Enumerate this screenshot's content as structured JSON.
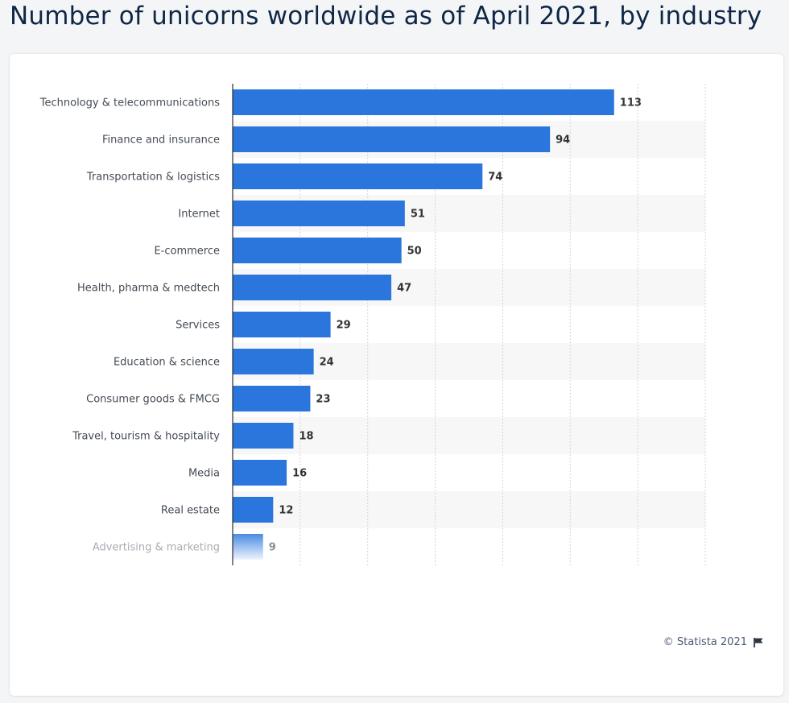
{
  "title": "Number of unicorns worldwide as of April 2021, by industry",
  "credit": "© Statista 2021",
  "icons": {
    "credit_flag": "flag-icon"
  },
  "colors": {
    "bar": "#2a76dd",
    "title": "#0f2747",
    "band": "#f7f7f7"
  },
  "chart_data": {
    "type": "bar",
    "orientation": "horizontal",
    "title": "Number of unicorns worldwide as of April 2021, by industry",
    "categories": [
      "Technology & telecommunications",
      "Finance and insurance",
      "Transportation & logistics",
      "Internet",
      "E-commerce",
      "Health, pharma & medtech",
      "Services",
      "Education & science",
      "Consumer goods & FMCG",
      "Travel, tourism & hospitality",
      "Media",
      "Real estate",
      "Advertising & marketing"
    ],
    "values": [
      113,
      94,
      74,
      51,
      50,
      47,
      29,
      24,
      23,
      18,
      16,
      12,
      9
    ],
    "value_labels": [
      "113",
      "94",
      "74",
      "51",
      "50",
      "47",
      "29",
      "24",
      "23",
      "18",
      "16",
      "12",
      "9"
    ],
    "xlim": [
      0,
      140
    ],
    "grid": true,
    "data_labels": true,
    "legend": false
  }
}
